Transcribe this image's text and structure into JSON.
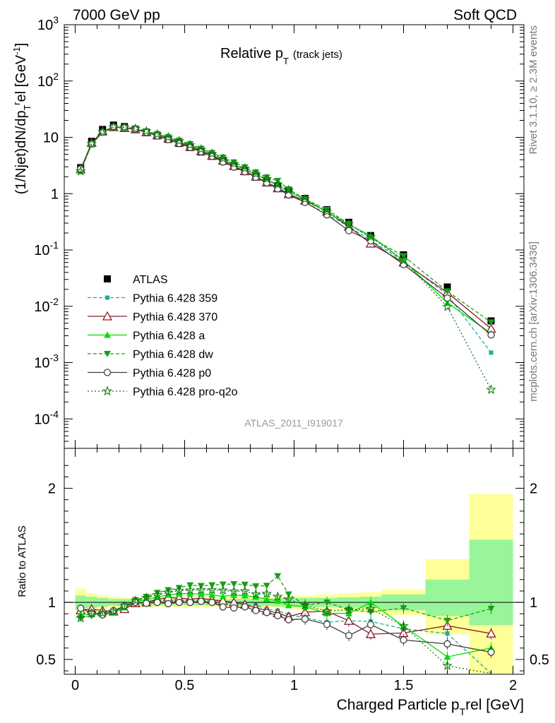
{
  "header": {
    "left": "7000 GeV pp",
    "right": "Soft QCD"
  },
  "side_labels": {
    "rivet": "Rivet 3.1.10, ≥ 2.3M events",
    "mcplots": "mcplots.cern.ch [arXiv:1306.3436]"
  },
  "chart_data": [
    {
      "type": "line",
      "title": "Relative p_T (track jets)",
      "title_main": "Relative p",
      "title_sub": "T",
      "title_extra": "(track jets)",
      "ylabel": "(1/Njet)dN/dp_T^rel [GeV^-1]",
      "analysis_tag": "ATLAS_2011_I919017",
      "yscale": "log",
      "xlim": [
        -0.05,
        2.05
      ],
      "ylim": [
        3e-05,
        1000
      ],
      "y_ticks": [
        "10^-4",
        "10^-3",
        "10^-2",
        "10^-1",
        "1",
        "10",
        "10^2",
        "10^3"
      ],
      "legend_position": "lower-left",
      "x": [
        0.025,
        0.075,
        0.125,
        0.175,
        0.225,
        0.275,
        0.325,
        0.375,
        0.425,
        0.475,
        0.525,
        0.575,
        0.625,
        0.675,
        0.725,
        0.775,
        0.825,
        0.875,
        0.925,
        0.975,
        1.05,
        1.15,
        1.25,
        1.35,
        1.5,
        1.7,
        1.9
      ],
      "series": [
        {
          "name": "ATLAS",
          "color": "#000000",
          "marker": "square",
          "dash": "none",
          "values": [
            2.9,
            8.5,
            13.8,
            16.5,
            15.5,
            14.0,
            12.3,
            10.6,
            9.2,
            7.8,
            6.6,
            5.5,
            4.6,
            3.8,
            3.1,
            2.55,
            2.1,
            1.7,
            1.38,
            1.12,
            0.82,
            0.52,
            0.31,
            0.18,
            0.082,
            0.022,
            0.0055
          ]
        },
        {
          "name": "Pythia 6.428 359",
          "color": "#1ab09a",
          "marker": "small-square",
          "dash": "5,3",
          "values": [
            2.6,
            7.6,
            12.3,
            15.0,
            14.6,
            13.9,
            12.3,
            10.8,
            9.5,
            8.0,
            6.7,
            5.55,
            4.65,
            3.8,
            3.1,
            2.5,
            2.05,
            1.6,
            1.28,
            1.0,
            0.71,
            0.43,
            0.26,
            0.15,
            0.063,
            0.016,
            0.0015
          ]
        },
        {
          "name": "Pythia 6.428 370",
          "color": "#8b1a2a",
          "marker": "open-triangle",
          "dash": "none",
          "values": [
            2.7,
            8.0,
            12.8,
            15.2,
            14.6,
            13.9,
            12.3,
            10.9,
            9.6,
            8.1,
            6.8,
            5.7,
            4.7,
            3.85,
            3.1,
            2.5,
            2.0,
            1.58,
            1.25,
            0.98,
            0.75,
            0.48,
            0.26,
            0.13,
            0.06,
            0.0175,
            0.004
          ]
        },
        {
          "name": "Pythia 6.428 a",
          "color": "#00e000",
          "marker": "triangle",
          "dash": "none",
          "values": [
            2.6,
            7.6,
            12.4,
            15.0,
            14.8,
            14.1,
            12.6,
            11.1,
            9.8,
            8.4,
            7.1,
            5.9,
            4.9,
            4.0,
            3.3,
            2.7,
            2.2,
            1.75,
            1.4,
            1.09,
            0.79,
            0.47,
            0.28,
            0.18,
            0.065,
            0.0115,
            0.0033
          ]
        },
        {
          "name": "Pythia 6.428 dw",
          "color": "#18a018",
          "marker": "down-triangle",
          "dash": "5,3",
          "values": [
            2.5,
            7.5,
            12.2,
            15.0,
            15.0,
            14.3,
            12.9,
            11.5,
            10.2,
            8.8,
            7.6,
            6.3,
            5.3,
            4.4,
            3.6,
            2.95,
            2.4,
            1.95,
            1.7,
            1.2,
            0.8,
            0.52,
            0.29,
            0.165,
            0.078,
            0.0185,
            0.0052
          ]
        },
        {
          "name": "Pythia 6.428 p0",
          "color": "#404040",
          "marker": "open-circle",
          "dash": "none",
          "values": [
            2.75,
            7.7,
            12.3,
            15.3,
            15.0,
            14.0,
            12.2,
            10.6,
            9.1,
            7.8,
            6.6,
            5.55,
            4.6,
            3.65,
            2.95,
            2.45,
            1.95,
            1.55,
            1.22,
            0.95,
            0.7,
            0.42,
            0.22,
            0.145,
            0.055,
            0.014,
            0.0031
          ]
        },
        {
          "name": "Pythia 6.428 pro-q2o",
          "color": "#107a10",
          "marker": "star",
          "dash": "2,3",
          "values": [
            2.5,
            7.7,
            12.5,
            15.2,
            15.0,
            14.2,
            12.8,
            11.3,
            10.0,
            8.6,
            7.3,
            6.1,
            5.1,
            4.2,
            3.4,
            2.8,
            2.25,
            1.83,
            1.45,
            1.15,
            0.8,
            0.48,
            0.29,
            0.17,
            0.065,
            0.0098,
            0.00033
          ]
        }
      ]
    },
    {
      "type": "line",
      "ylabel": "Ratio to ATLAS",
      "xlabel": "Charged Particle p_T^rel [GeV]",
      "xlabel_main": "Charged Particle p",
      "xlabel_sub": "T",
      "xlabel_after": "rel [GeV]",
      "xlim": [
        -0.05,
        2.05
      ],
      "ylim": [
        0.37,
        2.35
      ],
      "y_ticks": [
        0.5,
        1,
        2
      ],
      "x_ticks": [
        "0",
        "0.5",
        "1",
        "1.5",
        "2"
      ],
      "x_tick_values": [
        0,
        0.5,
        1,
        1.5,
        2
      ],
      "reference_line": 1,
      "uncertainty_bands": {
        "edges": [
          0.0,
          0.05,
          0.1,
          0.15,
          0.2,
          0.25,
          0.3,
          0.35,
          0.4,
          0.45,
          0.5,
          0.55,
          0.6,
          0.65,
          0.7,
          0.75,
          0.8,
          0.85,
          0.9,
          0.95,
          1.0,
          1.1,
          1.2,
          1.3,
          1.4,
          1.6,
          1.8,
          2.0
        ],
        "stat_color": "#99f599",
        "total_color": "#ffff99",
        "stat_low": [
          0.94,
          0.95,
          0.96,
          0.97,
          0.97,
          0.975,
          0.975,
          0.975,
          0.975,
          0.975,
          0.975,
          0.975,
          0.975,
          0.975,
          0.97,
          0.97,
          0.97,
          0.97,
          0.965,
          0.965,
          0.96,
          0.96,
          0.955,
          0.95,
          0.93,
          0.88,
          0.8
        ],
        "stat_high": [
          1.06,
          1.05,
          1.04,
          1.03,
          1.03,
          1.025,
          1.025,
          1.025,
          1.025,
          1.025,
          1.025,
          1.025,
          1.025,
          1.025,
          1.03,
          1.03,
          1.03,
          1.03,
          1.035,
          1.035,
          1.04,
          1.04,
          1.045,
          1.05,
          1.07,
          1.2,
          1.55
        ],
        "total_low": [
          0.9,
          0.92,
          0.94,
          0.95,
          0.96,
          0.96,
          0.96,
          0.96,
          0.96,
          0.96,
          0.96,
          0.96,
          0.96,
          0.96,
          0.955,
          0.955,
          0.955,
          0.955,
          0.95,
          0.95,
          0.94,
          0.93,
          0.92,
          0.91,
          0.89,
          0.72,
          0.2
        ],
        "total_high": [
          1.12,
          1.08,
          1.06,
          1.05,
          1.04,
          1.04,
          1.04,
          1.04,
          1.04,
          1.04,
          1.04,
          1.04,
          1.04,
          1.04,
          1.045,
          1.045,
          1.045,
          1.045,
          1.05,
          1.05,
          1.06,
          1.07,
          1.08,
          1.09,
          1.11,
          1.38,
          1.95
        ]
      }
    }
  ]
}
